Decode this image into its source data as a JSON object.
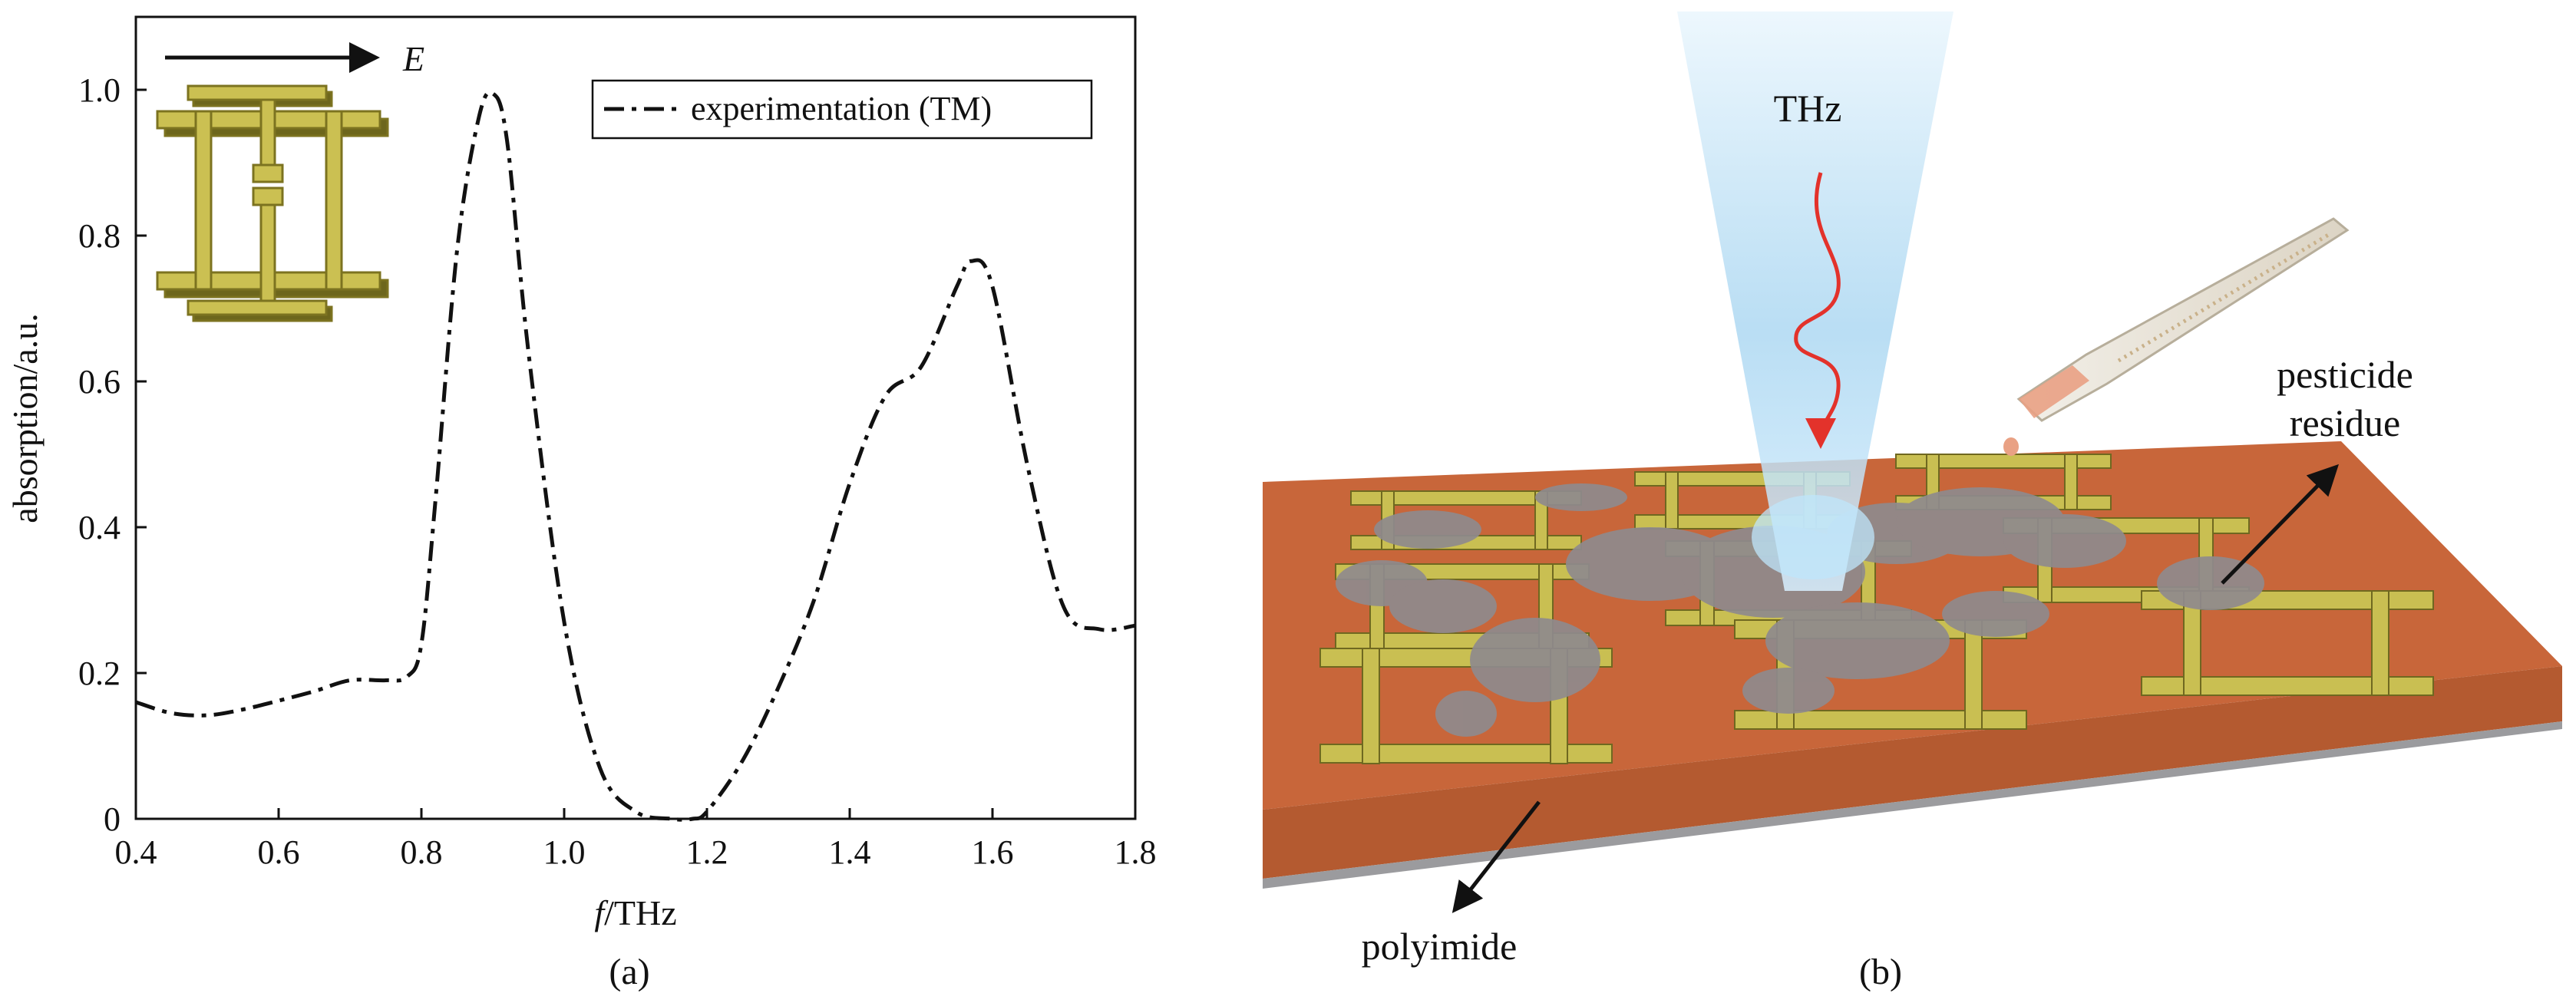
{
  "panel_a": {
    "caption": "(a)",
    "field_label": "E",
    "inset_icon": "split-ring-resonator-unit-cell"
  },
  "panel_b": {
    "caption": "(b)",
    "beam_label": "THz",
    "residue_label_line1": "pesticide",
    "residue_label_line2": "residue",
    "substrate_label": "polyimide",
    "colors": {
      "substrate": "#c8663a",
      "substrate_front": "#b45a30",
      "metal": "#c9bf52",
      "residue": "#8f8a8d",
      "beam": "#bfe0f4",
      "wave": "#e3322b"
    }
  },
  "chart_data": {
    "type": "line",
    "title": "",
    "xlabel_italic": "f",
    "xlabel_rest": "/THz",
    "ylabel": "absorption/a.u.",
    "xlim": [
      0.4,
      1.8
    ],
    "ylim": [
      0,
      1.1
    ],
    "xticks": [
      "0.4",
      "0.6",
      "0.8",
      "1.0",
      "1.2",
      "1.4",
      "1.6",
      "1.8"
    ],
    "yticks": [
      "0",
      "0.2",
      "0.4",
      "0.6",
      "0.8",
      "1.0"
    ],
    "grid": false,
    "legend_position": "top-right",
    "line_style": "dash-dot",
    "series": [
      {
        "name": "experimentation (TM)",
        "x": [
          0.4,
          0.45,
          0.5,
          0.55,
          0.6,
          0.65,
          0.7,
          0.75,
          0.78,
          0.8,
          0.82,
          0.85,
          0.88,
          0.9,
          0.92,
          0.95,
          1.0,
          1.05,
          1.1,
          1.15,
          1.18,
          1.2,
          1.25,
          1.3,
          1.35,
          1.4,
          1.45,
          1.5,
          1.55,
          1.57,
          1.6,
          1.65,
          1.7,
          1.75,
          1.8
        ],
        "y": [
          0.16,
          0.145,
          0.142,
          0.15,
          0.162,
          0.175,
          0.19,
          0.19,
          0.195,
          0.24,
          0.44,
          0.78,
          0.96,
          0.995,
          0.93,
          0.64,
          0.27,
          0.07,
          0.01,
          0.0,
          0.0,
          0.01,
          0.08,
          0.18,
          0.3,
          0.46,
          0.58,
          0.62,
          0.73,
          0.765,
          0.73,
          0.48,
          0.29,
          0.26,
          0.265
        ]
      }
    ]
  }
}
